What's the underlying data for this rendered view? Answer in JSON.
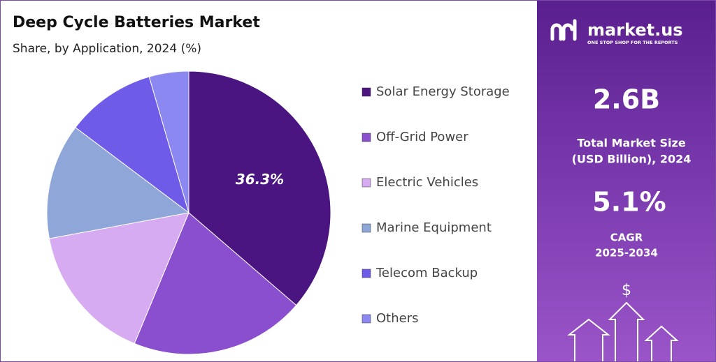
{
  "chart_data": {
    "type": "pie",
    "title": "Deep Cycle Batteries Market",
    "subtitle": "Share, by Application, 2024 (%)",
    "categories": [
      "Solar Energy Storage",
      "Off-Grid Power",
      "Electric Vehicles",
      "Marine Equipment",
      "Telecom Backup",
      "Others"
    ],
    "values": [
      36.3,
      19.9,
      15.8,
      13.2,
      10.2,
      4.5
    ],
    "value_labels": [
      "36.3%",
      null,
      null,
      null,
      null,
      null
    ],
    "colors": [
      "#4a1580",
      "#8a4fcf",
      "#d6abf2",
      "#8fa7d8",
      "#6e5ce8",
      "#8b88f2"
    ],
    "legend": "right"
  },
  "sidebar": {
    "brand": "market.us",
    "tagline": "ONE STOP SHOP FOR THE REPORTS",
    "market_size": "2.6B",
    "market_size_label_1": "Total Market Size",
    "market_size_label_2": "(USD Billion), 2024",
    "cagr": "5.1%",
    "cagr_label_1": "CAGR",
    "cagr_label_2": "2025-2034",
    "icon": "$"
  }
}
